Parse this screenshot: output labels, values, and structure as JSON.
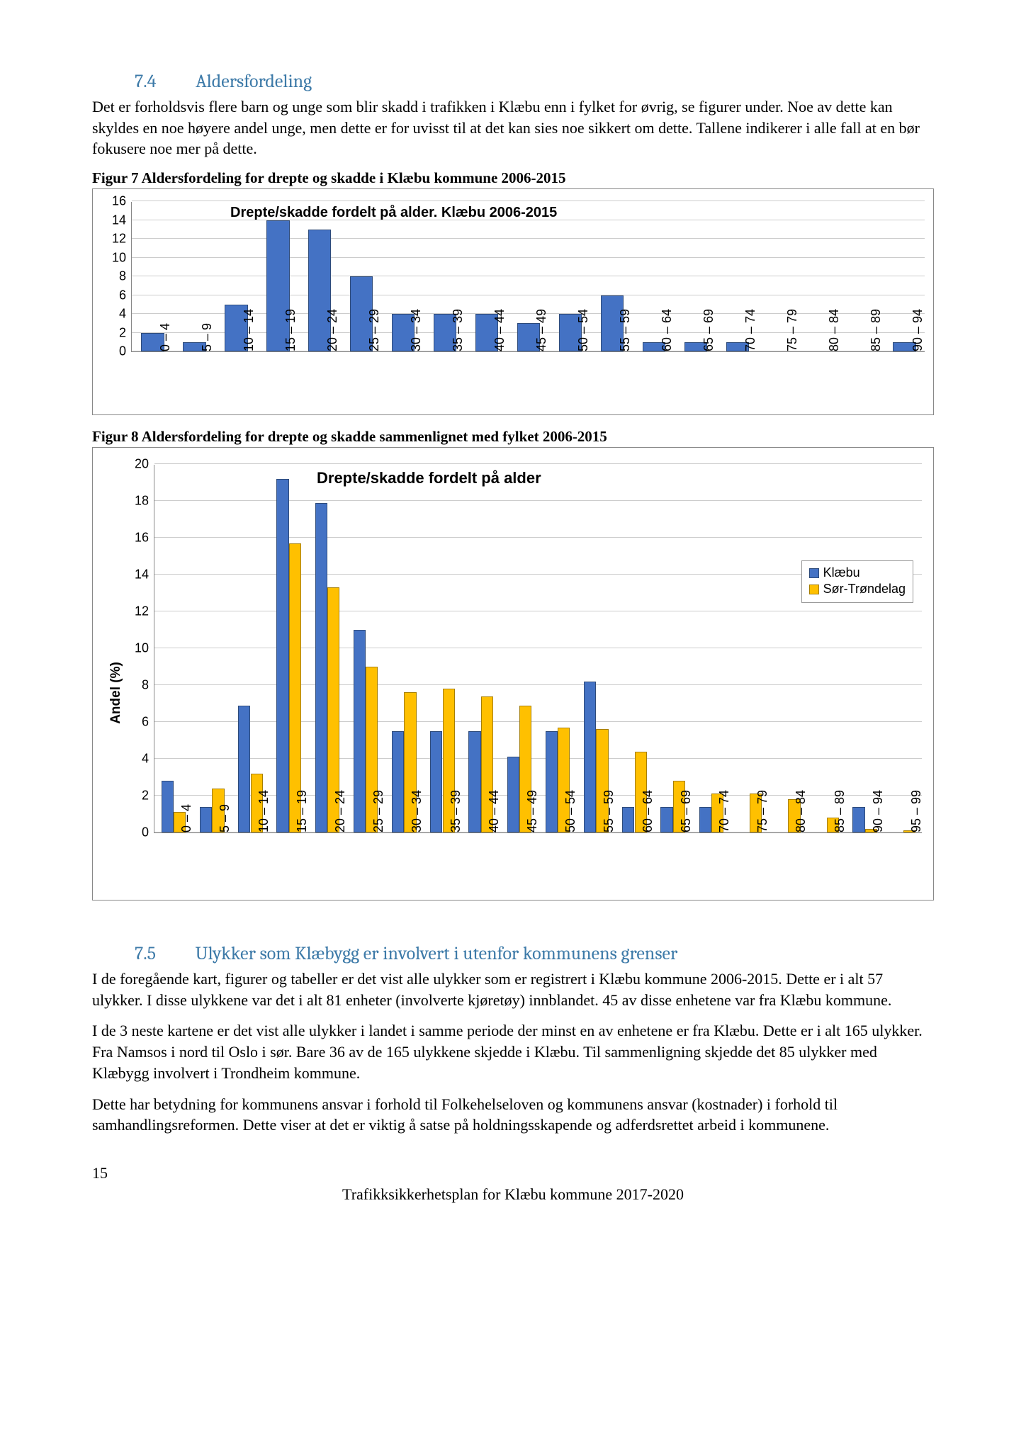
{
  "section74": {
    "number": "7.4",
    "title": "Aldersfordeling",
    "paragraph": "Det er forholdsvis flere barn og unge som blir skadd i trafikken i Klæbu enn i fylket for øvrig, se figurer under. Noe av dette kan skyldes en noe høyere andel unge, men dette er for uvisst til at det kan sies noe sikkert om dette. Tallene indikerer i alle fall at en bør fokusere noe mer på dette."
  },
  "figure7": {
    "caption": "Figur 7 Aldersfordeling for drepte og skadde i Klæbu kommune 2006-2015",
    "type": "bar",
    "title": "Drepte/skadde fordelt på alder. Klæbu 2006-2015",
    "title_fontsize": 20,
    "categories": [
      "0 – 4",
      "5 – 9",
      "10 – 14",
      "15 – 19",
      "20 – 24",
      "25 – 29",
      "30 – 34",
      "35 – 39",
      "40 – 44",
      "45 – 49",
      "50 – 54",
      "55 – 59",
      "60 – 64",
      "65 – 69",
      "70 – 74",
      "75 – 79",
      "80 – 84",
      "85 – 89",
      "90 – 94"
    ],
    "values": [
      2,
      1,
      5,
      14,
      13,
      8,
      4,
      4,
      4,
      3,
      4,
      6,
      1,
      1,
      1,
      0,
      0,
      0,
      1
    ],
    "bar_color": "#4472c4",
    "bar_border": "#2e4b7a",
    "ylim": [
      0,
      16
    ],
    "ytick_step": 2,
    "grid_color": "#cccccc",
    "axis_fontsize": 18,
    "x_label_rotate": -90
  },
  "figure8": {
    "caption": "Figur 8 Aldersfordeling for drepte og skadde sammenlignet med fylket 2006-2015",
    "type": "grouped-bar",
    "title": "Drepte/skadde fordelt på alder",
    "title_fontsize": 22,
    "ylabel": "Andel (%)",
    "ylabel_fontsize": 19,
    "categories": [
      "0 – 4",
      "5 – 9",
      "10 – 14",
      "15 – 19",
      "20 – 24",
      "25 – 29",
      "30 – 34",
      "35 – 39",
      "40 – 44",
      "45 – 49",
      "50 – 54",
      "55 – 59",
      "60 – 64",
      "65 – 69",
      "70 – 74",
      "75 – 79",
      "80 – 84",
      "85 – 89",
      "90 – 94",
      "95 – 99"
    ],
    "series": [
      {
        "name": "Klæbu",
        "color": "#4472c4",
        "border": "#2e4b7a",
        "values": [
          2.8,
          1.4,
          6.9,
          19.2,
          17.9,
          11.0,
          5.5,
          5.5,
          5.5,
          4.1,
          5.5,
          8.2,
          1.4,
          1.4,
          1.4,
          0,
          0,
          0,
          1.4,
          0
        ]
      },
      {
        "name": "Sør-Trøndelag",
        "color": "#ffc000",
        "border": "#a67e00",
        "values": [
          1.1,
          2.4,
          3.2,
          15.7,
          13.3,
          9.0,
          7.6,
          7.8,
          7.4,
          6.9,
          5.7,
          5.6,
          4.4,
          2.8,
          2.1,
          2.1,
          1.8,
          0.8,
          0.2,
          0.1
        ]
      }
    ],
    "ylim": [
      0,
      20
    ],
    "ytick_step": 2,
    "grid_color": "#cccccc",
    "axis_fontsize": 18,
    "legend_fontsize": 18,
    "x_label_rotate": -90
  },
  "section75": {
    "number": "7.5",
    "title": "Ulykker som Klæbygg er involvert i utenfor kommunens grenser",
    "p1": "I de foregående kart, figurer og tabeller er det vist alle ulykker som er registrert i Klæbu kommune 2006-2015. Dette er i alt 57 ulykker. I disse ulykkene var det i alt 81 enheter (involverte kjøretøy) innblandet. 45 av disse enhetene var fra Klæbu kommune.",
    "p2": "I de 3 neste kartene er det vist alle ulykker i landet i samme periode der minst en av enhetene er fra Klæbu. Dette er i alt 165 ulykker. Fra Namsos i nord til Oslo i sør. Bare 36 av de 165 ulykkene skjedde i Klæbu. Til sammenligning skjedde det 85 ulykker med Klæbygg involvert i Trondheim kommune.",
    "p3": "Dette har betydning for kommunens ansvar i forhold til Folkehelseloven og kommunens ansvar (kostnader) i forhold til samhandlingsreformen. Dette viser at det er viktig å satse på holdningsskapende og adferdsrettet arbeid i kommunene."
  },
  "footer": {
    "page": "15",
    "title": "Trafikksikkerhetsplan for Klæbu kommune 2017-2020"
  }
}
